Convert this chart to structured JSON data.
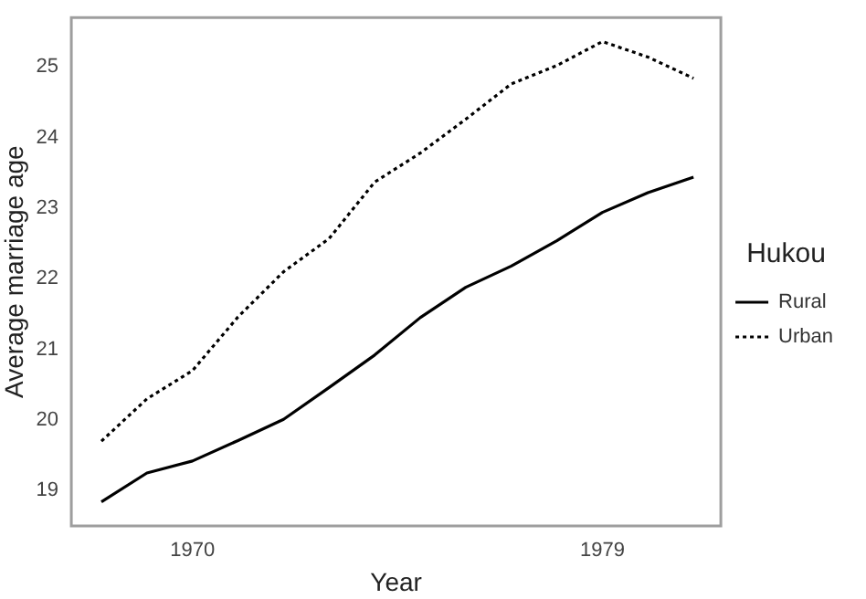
{
  "chart_data": {
    "type": "line",
    "xlabel": "Year",
    "ylabel": "Average marriage age",
    "legend_title": "Hukou",
    "legend": "right",
    "x": [
      1968,
      1969,
      1970,
      1971,
      1972,
      1973,
      1974,
      1975,
      1976,
      1977,
      1978,
      1979,
      1980,
      1981
    ],
    "series": [
      {
        "name": "Rural",
        "color": "#000000",
        "line_style": "solid",
        "values": [
          18.84,
          19.25,
          19.42,
          19.71,
          20.01,
          20.46,
          20.92,
          21.45,
          21.88,
          22.18,
          22.54,
          22.94,
          23.22,
          23.44
        ]
      },
      {
        "name": "Urban",
        "color": "#000000",
        "line_style": "dotted",
        "values": [
          19.7,
          20.3,
          20.7,
          21.46,
          22.1,
          22.57,
          23.37,
          23.78,
          24.26,
          24.76,
          25.02,
          25.36,
          25.14,
          24.84
        ]
      }
    ],
    "xlim": [
      1967.34,
      1981.6
    ],
    "ylim": [
      18.5,
      25.7
    ],
    "xticks": [
      1970,
      1979
    ],
    "yticks": [
      19,
      20,
      21,
      22,
      23,
      24,
      25
    ],
    "grid": false,
    "marker": "none"
  }
}
